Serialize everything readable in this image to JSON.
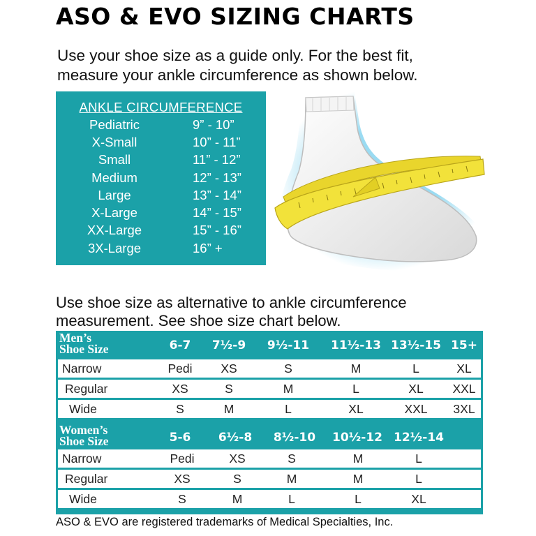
{
  "title": "ASO & EVO SIZING CHARTS",
  "intro": {
    "line1": "Use your shoe size as a guide only. For the best fit,",
    "line2": "measure your ankle circumference as shown below."
  },
  "ankle": {
    "header": "ANKLE CIRCUMFERENCE",
    "rows": [
      {
        "size": "Pediatric",
        "measure": "9” - 10”"
      },
      {
        "size": "X-Small",
        "measure": "10” - 11”"
      },
      {
        "size": "Small",
        "measure": "11” - 12”"
      },
      {
        "size": "Medium",
        "measure": "12” - 13”"
      },
      {
        "size": "Large",
        "measure": "13” - 14”"
      },
      {
        "size": "X-Large",
        "measure": "14” - 15”"
      },
      {
        "size": "XX-Large",
        "measure": "15” - 16”"
      },
      {
        "size": "3X-Large",
        "measure": "16” +"
      }
    ]
  },
  "alt": {
    "line1": "Use shoe size as alternative to ankle circumference",
    "line2": "measurement. See shoe size chart below."
  },
  "mens": {
    "label1": "Men’s",
    "label2": "Shoe Size",
    "sizes": [
      "6-7",
      "7½-9",
      "9½-11",
      "11½-13",
      "13½-15",
      "15+"
    ],
    "rows": [
      {
        "width": "Narrow",
        "values": [
          "Pedi",
          "XS",
          "S",
          "M",
          "L",
          "XL"
        ]
      },
      {
        "width": "Regular",
        "values": [
          "XS",
          "S",
          "M",
          "L",
          "XL",
          "XXL"
        ]
      },
      {
        "width": "Wide",
        "values": [
          "S",
          "M",
          "L",
          "XL",
          "XXL",
          "3XL"
        ]
      }
    ]
  },
  "womens": {
    "label1": "Women’s",
    "label2": "Shoe Size",
    "sizes": [
      "5-6",
      "6½-8",
      "8½-10",
      "10½-12",
      "12½-14"
    ],
    "rows": [
      {
        "width": "Narrow",
        "values": [
          "Pedi",
          "XS",
          "S",
          "M",
          "L"
        ]
      },
      {
        "width": "Regular",
        "values": [
          "XS",
          "S",
          "M",
          "M",
          "L"
        ]
      },
      {
        "width": "Wide",
        "values": [
          "S",
          "M",
          "L",
          "L",
          "XL"
        ]
      }
    ]
  },
  "footer": "ASO & EVO are registered trademarks of Medical Specialties, Inc.",
  "colors": {
    "teal": "#1ba1a8",
    "tape": "#f2e23a"
  }
}
